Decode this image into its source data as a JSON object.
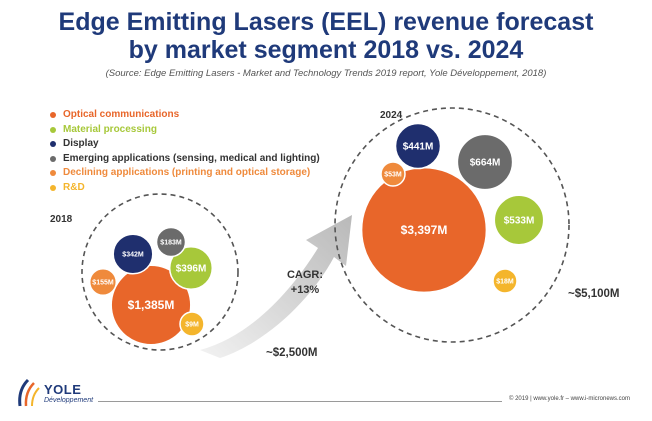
{
  "header": {
    "title_line1": "Edge Emitting Lasers (EEL) revenue forecast",
    "title_line2": "by market segment 2018 vs. 2024",
    "source": "(Source: Edge Emitting Lasers - Market and Technology Trends 2019 report, Yole Développement, 2018)"
  },
  "colors": {
    "optical": "#e8662a",
    "material": "#a7c83a",
    "display": "#1f2f6e",
    "emerging": "#6b6b6b",
    "declining": "#ef8a3c",
    "rnd": "#f4b52c",
    "title": "#1f3a7a"
  },
  "chart_data": {
    "type": "bubble",
    "title": "Edge Emitting Lasers (EEL) revenue forecast by market segment 2018 vs. 2024",
    "unit": "$M",
    "legend": [
      {
        "key": "optical",
        "label": "Optical communications"
      },
      {
        "key": "material",
        "label": "Material processing"
      },
      {
        "key": "display",
        "label": "Display"
      },
      {
        "key": "emerging",
        "label": "Emerging applications (sensing, medical and lighting)"
      },
      {
        "key": "declining",
        "label": "Declining applications (printing and optical storage)"
      },
      {
        "key": "rnd",
        "label": "R&D"
      }
    ],
    "groups": [
      {
        "year": "2018",
        "total_label": "~$2,500M",
        "bubbles": [
          {
            "key": "optical",
            "value": 1385,
            "label": "$1,385M"
          },
          {
            "key": "material",
            "value": 396,
            "label": "$396M"
          },
          {
            "key": "display",
            "value": 342,
            "label": "$342M"
          },
          {
            "key": "emerging",
            "value": 183,
            "label": "$183M"
          },
          {
            "key": "declining",
            "value": 155,
            "label": "$155M"
          },
          {
            "key": "rnd",
            "value": 9,
            "label": "$9M"
          }
        ]
      },
      {
        "year": "2024",
        "total_label": "~$5,100M",
        "bubbles": [
          {
            "key": "optical",
            "value": 3397,
            "label": "$3,397M"
          },
          {
            "key": "emerging",
            "value": 664,
            "label": "$664M"
          },
          {
            "key": "material",
            "value": 533,
            "label": "$533M"
          },
          {
            "key": "display",
            "value": 441,
            "label": "$441M"
          },
          {
            "key": "declining",
            "value": 53,
            "label": "$53M"
          },
          {
            "key": "rnd",
            "value": 18,
            "label": "$18M"
          }
        ]
      }
    ],
    "cagr_label": "CAGR:",
    "cagr_value": "+13%"
  },
  "footer": {
    "logo_word": "YOLE",
    "logo_sub": "Développement",
    "copyright": "© 2019 | www.yole.fr – www.i-micronews.com"
  }
}
